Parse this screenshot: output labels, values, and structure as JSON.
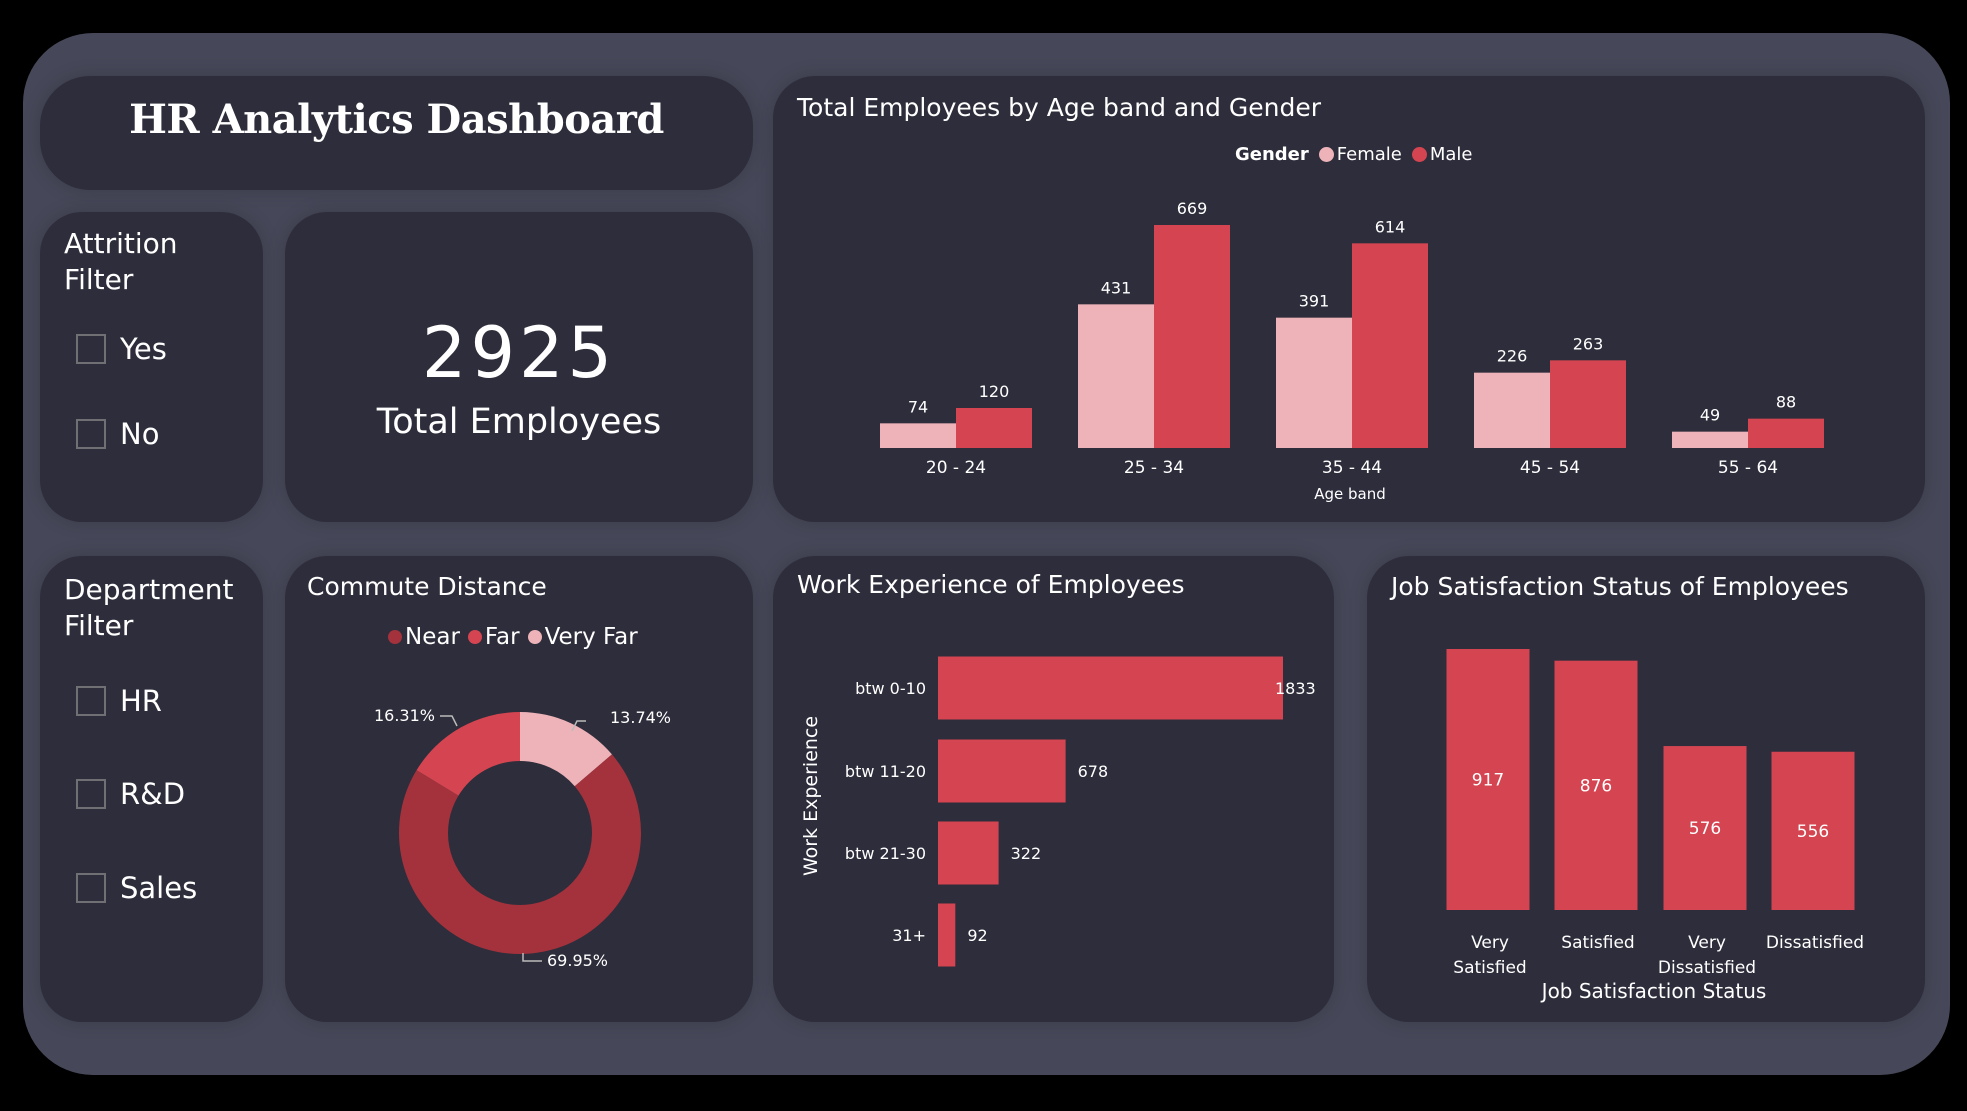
{
  "header": {
    "title": "HR Analytics Dashboard"
  },
  "colors": {
    "page_bg": "#000000",
    "panel_bg": "#464859",
    "card_bg": "#2e2d3b",
    "male": "#d44551",
    "female": "#edb3b9",
    "near": "#a3323c",
    "far": "#d44551",
    "very_far": "#edb3b9",
    "bar": "#d44551"
  },
  "attrition_filter": {
    "title_line1": "Attrition",
    "title_line2": "Filter",
    "options": [
      {
        "label": "Yes",
        "checked": false
      },
      {
        "label": "No",
        "checked": false
      }
    ]
  },
  "department_filter": {
    "title_line1": "Department",
    "title_line2": "Filter",
    "options": [
      {
        "label": "HR",
        "checked": false
      },
      {
        "label": "R&D",
        "checked": false
      },
      {
        "label": "Sales",
        "checked": false
      }
    ]
  },
  "kpi": {
    "value": "2925",
    "label": "Total Employees"
  },
  "chart_data": [
    {
      "id": "age_gender",
      "type": "bar",
      "title": "Total Employees by Age band and Gender",
      "legend_title": "Gender",
      "legend_position": "top-right",
      "categories": [
        "20 - 24",
        "25 - 34",
        "35 - 44",
        "45 - 54",
        "55 - 64"
      ],
      "series": [
        {
          "name": "Female",
          "values": [
            74,
            431,
            391,
            226,
            49
          ]
        },
        {
          "name": "Male",
          "values": [
            120,
            669,
            614,
            263,
            88
          ]
        }
      ],
      "xlabel": "Age band",
      "ylabel": "",
      "grid": false
    },
    {
      "id": "commute",
      "type": "pie",
      "subtype": "donut",
      "title": "Commute Distance",
      "legend_position": "top",
      "slices": [
        {
          "name": "Very Far",
          "value": 13.74,
          "label": "13.74%"
        },
        {
          "name": "Near",
          "value": 69.95,
          "label": "69.95%"
        },
        {
          "name": "Far",
          "value": 16.31,
          "label": "16.31%"
        }
      ],
      "legend": [
        "Near",
        "Far",
        "Very Far"
      ]
    },
    {
      "id": "work_experience",
      "type": "bar",
      "orientation": "horizontal",
      "title": "Work Experience of Employees",
      "categories": [
        "btw 0-10",
        "btw 11-20",
        "btw 21-30",
        "31+"
      ],
      "values": [
        1833,
        678,
        322,
        92
      ],
      "xlabel": "",
      "ylabel": "Work Experience",
      "grid": false
    },
    {
      "id": "job_satisfaction",
      "type": "bar",
      "title": "Job Satisfaction Status of Employees",
      "categories": [
        "Very Satisfied",
        "Satisfied",
        "Very Dissatisfied",
        "Dissatisfied"
      ],
      "category_lines": [
        [
          "Very",
          "Satisfied"
        ],
        [
          "Satisfied"
        ],
        [
          "Very",
          "Dissatisfied"
        ],
        [
          "Dissatisfied"
        ]
      ],
      "values": [
        917,
        876,
        576,
        556
      ],
      "xlabel": "Job Satisfaction Status",
      "ylabel": "",
      "grid": false
    }
  ]
}
